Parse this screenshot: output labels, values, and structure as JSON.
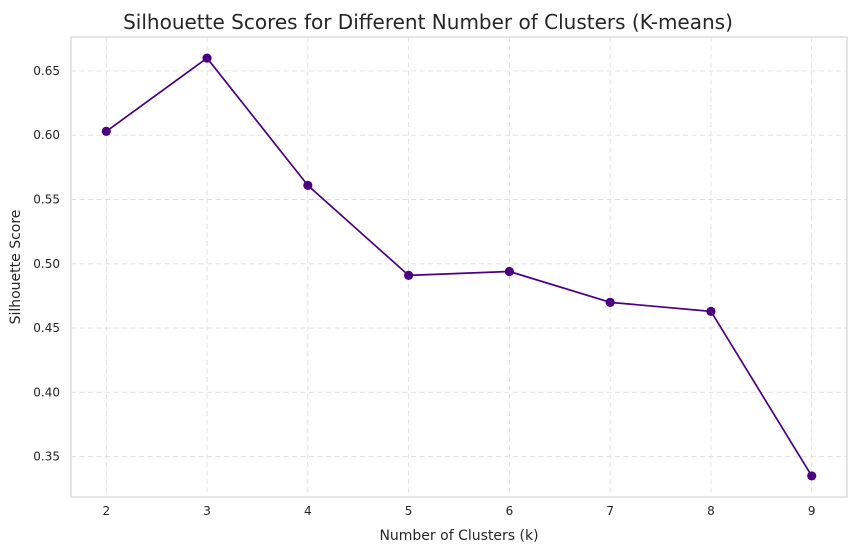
{
  "chart_data": {
    "type": "line",
    "title": "Silhouette Scores for Different Number of Clusters (K-means)",
    "xlabel": "Number of Clusters (k)",
    "ylabel": "Silhouette Score",
    "x": [
      2,
      3,
      4,
      5,
      6,
      7,
      8,
      9
    ],
    "series": [
      {
        "values": [
          0.603,
          0.66,
          0.561,
          0.491,
          0.494,
          0.47,
          0.463,
          0.335
        ]
      }
    ],
    "xticks": [
      "2",
      "3",
      "4",
      "5",
      "6",
      "7",
      "8",
      "9"
    ],
    "yticks": [
      "0.35",
      "0.40",
      "0.45",
      "0.50",
      "0.55",
      "0.60",
      "0.65"
    ],
    "xlim": [
      1.65,
      9.35
    ],
    "ylim": [
      0.3186,
      0.6764
    ],
    "marker": "circle",
    "grid": true,
    "colors": {
      "line": "#4b0082",
      "grid": "#dedede",
      "frame": "#cccccc"
    }
  }
}
